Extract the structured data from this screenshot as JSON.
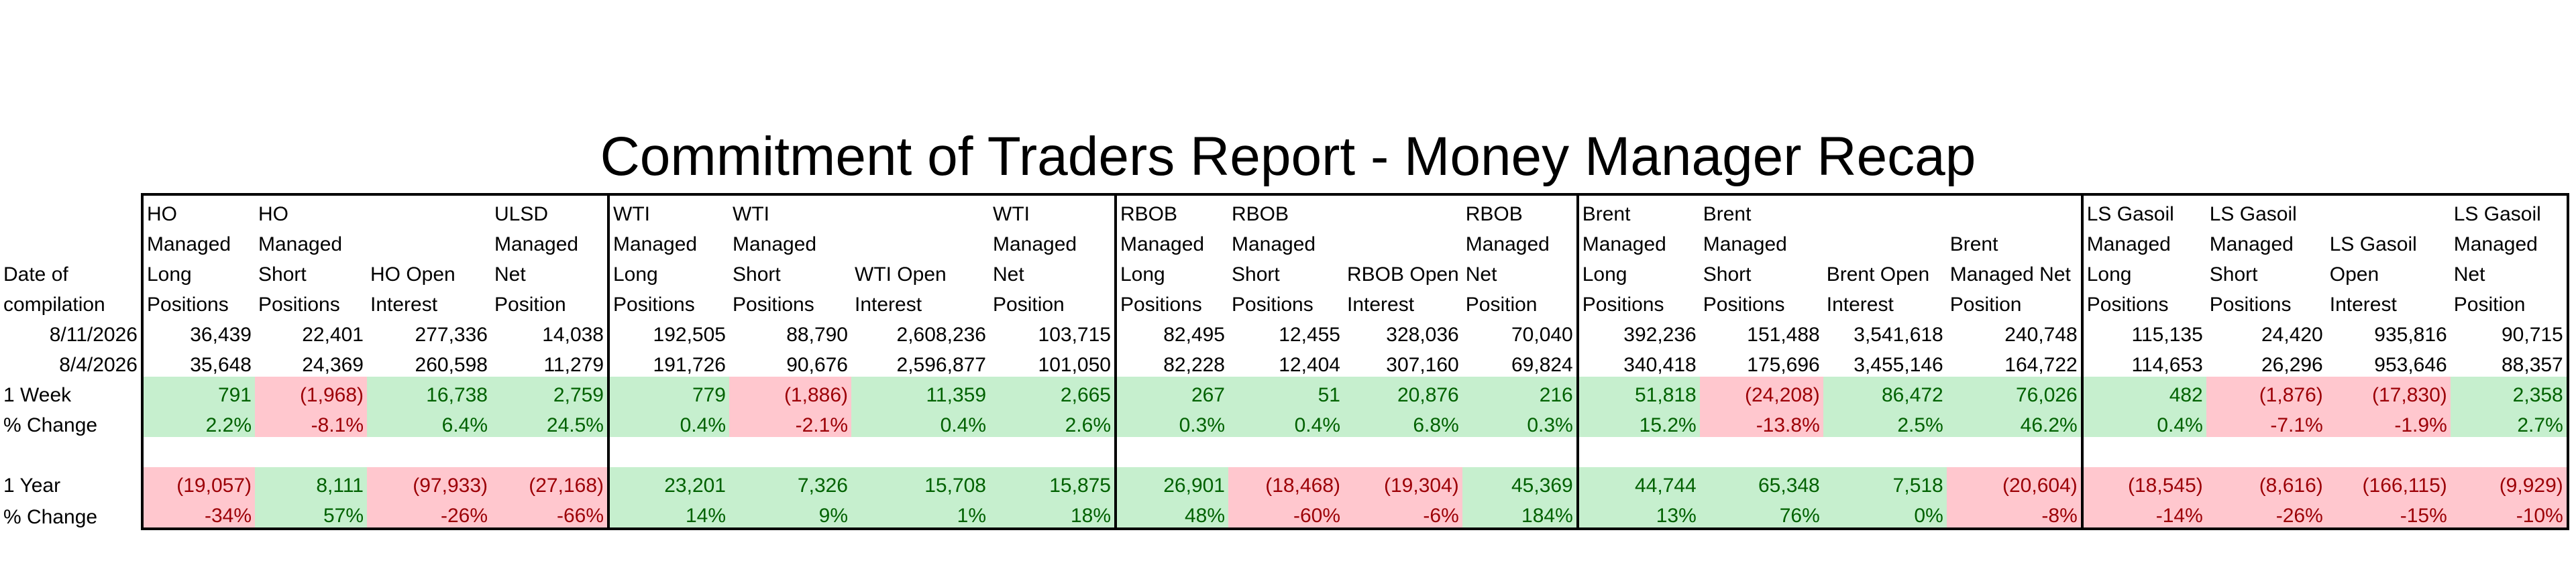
{
  "title": "Commitment of Traders Report - Money Manager Recap",
  "date_label": [
    "Date of",
    "compilation"
  ],
  "columns": [
    [
      "HO",
      "Managed",
      "Long",
      "Positions"
    ],
    [
      "HO",
      "Managed",
      "Short",
      "Positions"
    ],
    [
      "HO Open",
      "Interest"
    ],
    [
      "ULSD",
      "Managed",
      "Net",
      "Position"
    ],
    [
      "WTI",
      "Managed",
      "Long",
      "Positions"
    ],
    [
      "WTI",
      "Managed",
      "Short",
      "Positions"
    ],
    [
      "WTI Open",
      "Interest"
    ],
    [
      "WTI",
      "Managed",
      "Net",
      "Position"
    ],
    [
      "RBOB",
      "Managed",
      "Long",
      "Positions"
    ],
    [
      "RBOB",
      "Managed",
      "Short",
      "Positions"
    ],
    [
      "RBOB Open",
      "Interest"
    ],
    [
      "RBOB",
      "Managed",
      "Net",
      "Position"
    ],
    [
      "Brent",
      "Managed",
      "Long",
      "Positions"
    ],
    [
      "Brent",
      "Managed",
      "Short",
      "Positions"
    ],
    [
      "Brent Open",
      "Interest"
    ],
    [
      "Brent",
      "Managed Net",
      "Position"
    ],
    [
      "LS Gasoil",
      "Managed",
      "Long",
      "Positions"
    ],
    [
      "LS Gasoil",
      "Managed",
      "Short",
      "Positions"
    ],
    [
      "LS Gasoil",
      "Open",
      "Interest"
    ],
    [
      "LS Gasoil",
      "Managed",
      "Net",
      "Position"
    ]
  ],
  "rows": [
    {
      "label": "8/11/2026",
      "values": [
        "36,439",
        "22,401",
        "277,336",
        "14,038",
        "192,505",
        "88,790",
        "2,608,236",
        "103,715",
        "82,495",
        "12,455",
        "328,036",
        "70,040",
        "392,236",
        "151,488",
        "3,541,618",
        "240,748",
        "115,135",
        "24,420",
        "935,816",
        "90,715"
      ]
    },
    {
      "label": "8/4/2026",
      "values": [
        "35,648",
        "24,369",
        "260,598",
        "11,279",
        "191,726",
        "90,676",
        "2,596,877",
        "101,050",
        "82,228",
        "12,404",
        "307,160",
        "69,824",
        "340,418",
        "175,696",
        "3,455,146",
        "164,722",
        "114,653",
        "26,296",
        "953,646",
        "88,357"
      ]
    },
    {
      "label": "1 Week",
      "values": [
        "791",
        "(1,968)",
        "16,738",
        "2,759",
        "779",
        "(1,886)",
        "11,359",
        "2,665",
        "267",
        "51",
        "20,876",
        "216",
        "51,818",
        "(24,208)",
        "86,472",
        "76,026",
        "482",
        "(1,876)",
        "(17,830)",
        "2,358"
      ]
    },
    {
      "label": "% Change",
      "values": [
        "2.2%",
        "-8.1%",
        "6.4%",
        "24.5%",
        "0.4%",
        "-2.1%",
        "0.4%",
        "2.6%",
        "0.3%",
        "0.4%",
        "6.8%",
        "0.3%",
        "15.2%",
        "-13.8%",
        "2.5%",
        "46.2%",
        "0.4%",
        "-7.1%",
        "-1.9%",
        "2.7%"
      ]
    },
    {
      "label": "",
      "values": [
        "",
        "",
        "",
        "",
        "",
        "",
        "",
        "",
        "",
        "",
        "",
        "",
        "",
        "",
        "",
        "",
        "",
        "",
        "",
        ""
      ]
    },
    {
      "label": "1 Year",
      "values": [
        "(19,057)",
        "8,111",
        "(97,933)",
        "(27,168)",
        "23,201",
        "7,326",
        "15,708",
        "15,875",
        "26,901",
        "(18,468)",
        "(19,304)",
        "45,369",
        "44,744",
        "65,348",
        "7,518",
        "(20,604)",
        "(18,545)",
        "(8,616)",
        "(166,115)",
        "(9,929)"
      ]
    },
    {
      "label": "% Change",
      "values": [
        "-34%",
        "57%",
        "-26%",
        "-66%",
        "14%",
        "9%",
        "1%",
        "18%",
        "48%",
        "-60%",
        "-6%",
        "184%",
        "13%",
        "76%",
        "0%",
        "-8%",
        "-14%",
        "-26%",
        "-15%",
        "-10%"
      ]
    }
  ],
  "colors": {
    "positive_fill": "#c6efce",
    "positive_text": "#006100",
    "negative_fill": "#ffc7ce",
    "negative_text": "#9c0006"
  }
}
